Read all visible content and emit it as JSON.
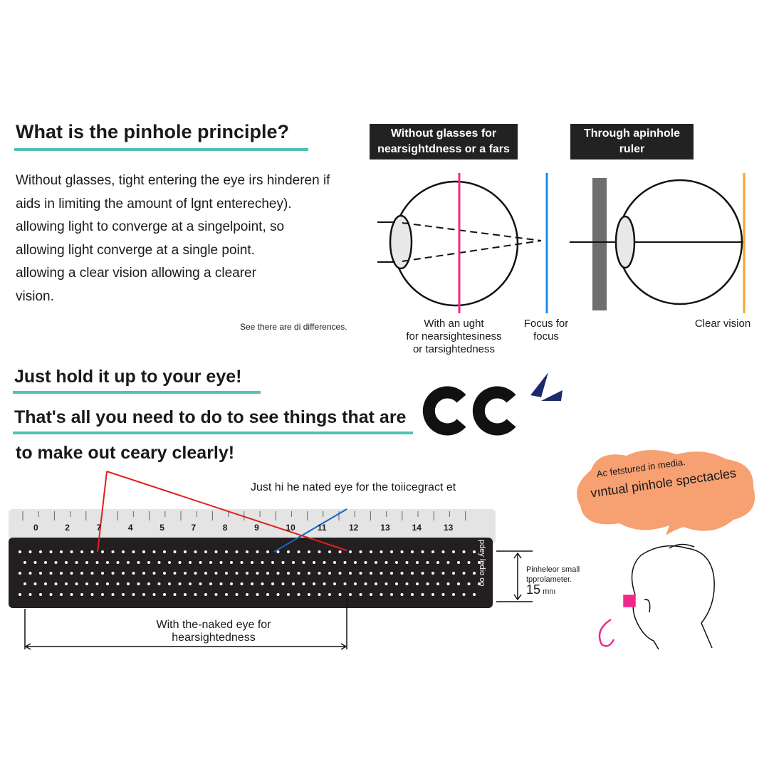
{
  "intro": {
    "title": "What is the pinhole principle?",
    "lines": [
      "Without glasses, tight entering the eye irs hinderen if",
      "aids in limiting the amount of lgnt enterechey).",
      "allowing light to converge at a singelpoint, so",
      "allowing light converge at a single point.",
      "allowing a clear vision allowing a clearer",
      "vision."
    ],
    "note": "See there are di differences."
  },
  "diagram_left": {
    "label_line1": "Without glasses for",
    "label_line2": "nearsightdness or a fars",
    "caption_lines": [
      "With an ught",
      "for nearsightesiness",
      "or tarsightedness"
    ],
    "focus_lines": [
      "Focus for",
      "focus"
    ]
  },
  "diagram_right": {
    "label_line1": "Through apinhole",
    "label_line2": "ruler",
    "caption": "Clear vision"
  },
  "colors": {
    "accent": "#4fc3b4",
    "pink": "#f0288c",
    "blue": "#1e88e5",
    "orange": "#f5a623",
    "bubble": "#f7a072",
    "navy": "#1a2a6c"
  },
  "howto": {
    "line1": "Just hold it up to your eye!",
    "line2": "That's all you need to do to see things that are",
    "line3": "to make out ceary clearly!",
    "glyphs": "C C"
  },
  "ruler": {
    "top_text": "Just hi he  nated eye for the  toiicegract et",
    "ticks": [
      "0",
      "2",
      "7",
      "4",
      "5",
      "7",
      "8",
      "9",
      "10",
      "11",
      "12",
      "13",
      "14",
      "13"
    ],
    "side_text": "pdey ledio oo",
    "dim_label_line1": "Pinheleor small",
    "dim_label_line2": "tpprolameter.",
    "dim_value": "15",
    "dim_unit": "mnı",
    "bottom_caption_line1": "With the-naked eye  for",
    "bottom_caption_line2": "hearsightedness"
  },
  "bubble": {
    "line1": "Ac fetstured in media.",
    "line2": "vıntual pinhole spectacles"
  }
}
